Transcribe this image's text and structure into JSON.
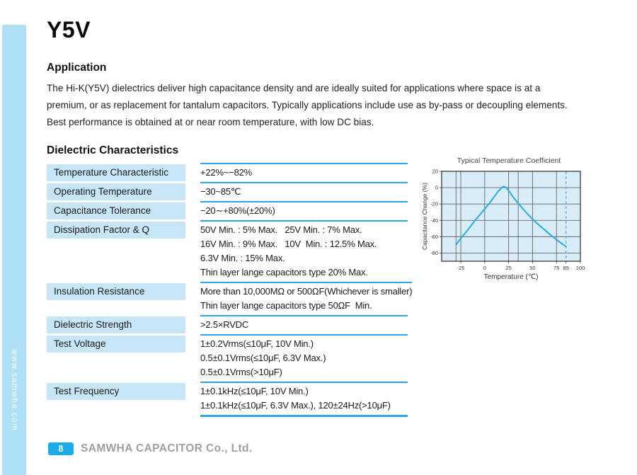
{
  "page": {
    "title": "Y5V",
    "sidebar_watermark": "www.samwha.com"
  },
  "application": {
    "heading": "Application",
    "lines": [
      "The Hi-K(Y5V) dielectrics deliver high capacitance density and are ideally suited for applications where space is at a",
      "premium, or as replacement for tantalum capacitors. Typically applications include use as by-pass or decoupling elements.",
      "Best performance is obtained at or near room temperature, with low DC bias."
    ]
  },
  "dielectric": {
    "heading": "Dielectric Characteristics",
    "rows": [
      {
        "label": "Temperature Characteristic",
        "values": [
          "+22%~−82%"
        ]
      },
      {
        "label": "Operating Temperature",
        "values": [
          "−30~85℃"
        ]
      },
      {
        "label": "Capacitance Tolerance",
        "values": [
          "−20∼+80%(±20%)"
        ]
      },
      {
        "label": "Dissipation Factor & Q",
        "values": [
          "50V Min. : 5% Max.   25V Min. : 7% Max.",
          "16V Min. : 9% Max.   10V  Min. : 12.5% Max.",
          "6.3V Min. : 15% Max.",
          "Thin layer lange capacitors type 20% Max."
        ]
      },
      {
        "label": "Insulation Resistance",
        "values": [
          "More than 10,000MΩ or 500ΩF(Whichever is smaller)",
          "Thin layer lange capacitors type 50ΩF  Min."
        ]
      },
      {
        "label": "Dielectric Strength",
        "values": [
          ">2.5×RVDC"
        ]
      },
      {
        "label": "Test Voltage",
        "values": [
          "1±0.2Vrms(≤10μF, 10V Min.)",
          "0.5±0.1Vrms(≤10μF, 6.3V Max.)",
          "0.5±0.1Vrms(>10μF)"
        ]
      },
      {
        "label": "Test Frequency",
        "values": [
          "1±0.1kHz(≤10μF, 10V Min.)",
          "1±0.1kHz(≤10μF, 6.3V Max.), 120±24Hz(>10μF)"
        ]
      }
    ]
  },
  "chart_data": {
    "type": "line",
    "title": "Typical Temperature Coefficient",
    "xlabel": "Temperature (℃)",
    "ylabel": "Capacitance Change (%)",
    "xlim": [
      -45,
      100
    ],
    "ylim": [
      -90,
      20
    ],
    "x_ticks": [
      -25,
      0,
      25,
      50,
      75,
      85,
      100
    ],
    "y_ticks": [
      20,
      0,
      -20,
      -40,
      -60,
      -80
    ],
    "x_gridlines": [
      -30,
      -25,
      0,
      25,
      35,
      50,
      75
    ],
    "dashed_line_x": 85,
    "grid": true,
    "legend": "none",
    "series": [
      {
        "name": "capacitance change",
        "x": [
          -30,
          -25,
          -20,
          -15,
          -10,
          -5,
          0,
          5,
          10,
          14,
          16,
          18,
          20,
          22,
          24,
          26,
          28,
          30,
          35,
          40,
          45,
          50,
          55,
          60,
          65,
          70,
          75,
          80,
          85
        ],
        "y": [
          -70,
          -62,
          -55,
          -47.5,
          -40,
          -33,
          -26,
          -19,
          -11,
          -4.5,
          -2.5,
          0.5,
          1.5,
          0.5,
          -2,
          -5,
          -8.5,
          -12,
          -19,
          -26,
          -32.5,
          -38.5,
          -44,
          -49,
          -54,
          -59,
          -63.5,
          -68,
          -72
        ]
      }
    ]
  },
  "footer": {
    "page_number": "8",
    "company": "SAMWHA CAPACITOR Co., Ltd."
  },
  "colors": {
    "accent_cyan": "#29abe2",
    "sidebar_blue": "#aee0f8",
    "label_cell_blue": "#c7e6f8",
    "badge_blue": "#1babe8",
    "footer_gray": "#9da0a3",
    "chart_plot_bg": "#d9edf9",
    "grid_gray": "#666666"
  }
}
